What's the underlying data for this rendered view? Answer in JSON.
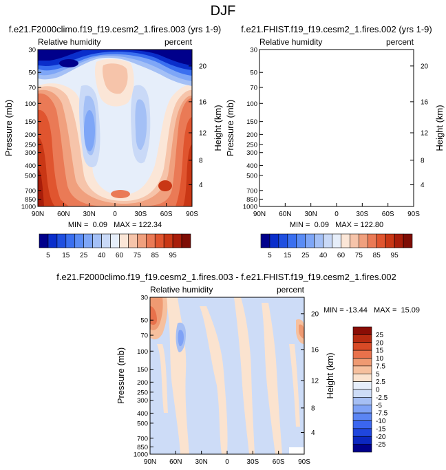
{
  "page": {
    "title": "DJF"
  },
  "colors": {
    "rh_scale": [
      "#00008b",
      "#0a2ecb",
      "#1f4fe0",
      "#3a6ff0",
      "#5a8cf5",
      "#7ea6f7",
      "#a4c0f6",
      "#c9d9f7",
      "#e6eefa",
      "#fbe6d7",
      "#f6c4aa",
      "#f0a07e",
      "#ea7a56",
      "#e0552f",
      "#c93715",
      "#a81d0a",
      "#7e0d05"
    ],
    "diff_scale": [
      "#00008b",
      "#0b27c0",
      "#1f46de",
      "#3b66ef",
      "#5b85f4",
      "#7fa2f6",
      "#a6bff4",
      "#cddcf7",
      "#e6eefa",
      "#fbe3cf",
      "#f6c09e",
      "#ef9a72",
      "#e8714b",
      "#d84a26",
      "#b62a10",
      "#8a0d05"
    ]
  },
  "chart_data": [
    {
      "type": "heatmap",
      "title": "f.e21.F2000climo.f19_f19.cesm2_1.fires.003 (yrs 1-9)",
      "left_string": "Relative humidity",
      "right_string": "percent",
      "xlabel": "",
      "ylabel": "Pressure (mb)",
      "y2label": "Height (km)",
      "x_ticks": [
        "90N",
        "60N",
        "30N",
        "0",
        "30S",
        "60S",
        "90S"
      ],
      "y_ticks": [
        "30",
        "50",
        "70",
        "100",
        "150",
        "200",
        "250",
        "300",
        "400",
        "500",
        "700",
        "850",
        "1000"
      ],
      "y_range": [
        1000,
        30
      ],
      "y2_ticks": [
        "20",
        "16",
        "12",
        "8",
        "4"
      ],
      "stats": "MIN =  0.09   MAX = 122.34"
    },
    {
      "type": "heatmap",
      "title": "f.e21.FHIST.f19_f19.cesm2_1.fires.002 (yrs 1-9)",
      "left_string": "Relative humidity",
      "right_string": "percent",
      "xlabel": "",
      "ylabel": "Pressure (mb)",
      "y2label": "Height (km)",
      "x_ticks": [
        "90N",
        "60N",
        "30N",
        "0",
        "30S",
        "60S",
        "90S"
      ],
      "y_ticks": [
        "30",
        "50",
        "70",
        "100",
        "150",
        "200",
        "250",
        "300",
        "400",
        "500",
        "700",
        "850",
        "1000"
      ],
      "y_range": [
        1000,
        30
      ],
      "y2_ticks": [
        "20",
        "16",
        "12",
        "8",
        "4"
      ],
      "stats": "MIN =  0.09   MAX = 122.80"
    },
    {
      "type": "heatmap",
      "title": "f.e21.F2000climo.f19_f19.cesm2_1.fires.003 - f.e21.FHIST.f19_f19.cesm2_1.fires.002",
      "left_string": "Relative humidity",
      "right_string": "percent",
      "xlabel": "",
      "ylabel": "Pressure (mb)",
      "y2label": "Height (km)",
      "x_ticks": [
        "90N",
        "60N",
        "30N",
        "0",
        "30S",
        "60S",
        "90S"
      ],
      "y_ticks": [
        "30",
        "50",
        "70",
        "100",
        "150",
        "200",
        "250",
        "300",
        "400",
        "500",
        "700",
        "850",
        "1000"
      ],
      "y_range": [
        1000,
        30
      ],
      "y2_ticks": [
        "20",
        "16",
        "12",
        "8",
        "4"
      ],
      "stats": "MIN = -13.44   MAX =  15.09"
    }
  ],
  "colorbars": {
    "rh_labels": [
      "5",
      "15",
      "25",
      "40",
      "60",
      "75",
      "85",
      "95"
    ],
    "diff_labels": [
      "25",
      "20",
      "15",
      "10",
      "7.5",
      "5",
      "2.5",
      "0",
      "-2.5",
      "-5",
      "-7.5",
      "-10",
      "-15",
      "-20",
      "-25"
    ]
  }
}
